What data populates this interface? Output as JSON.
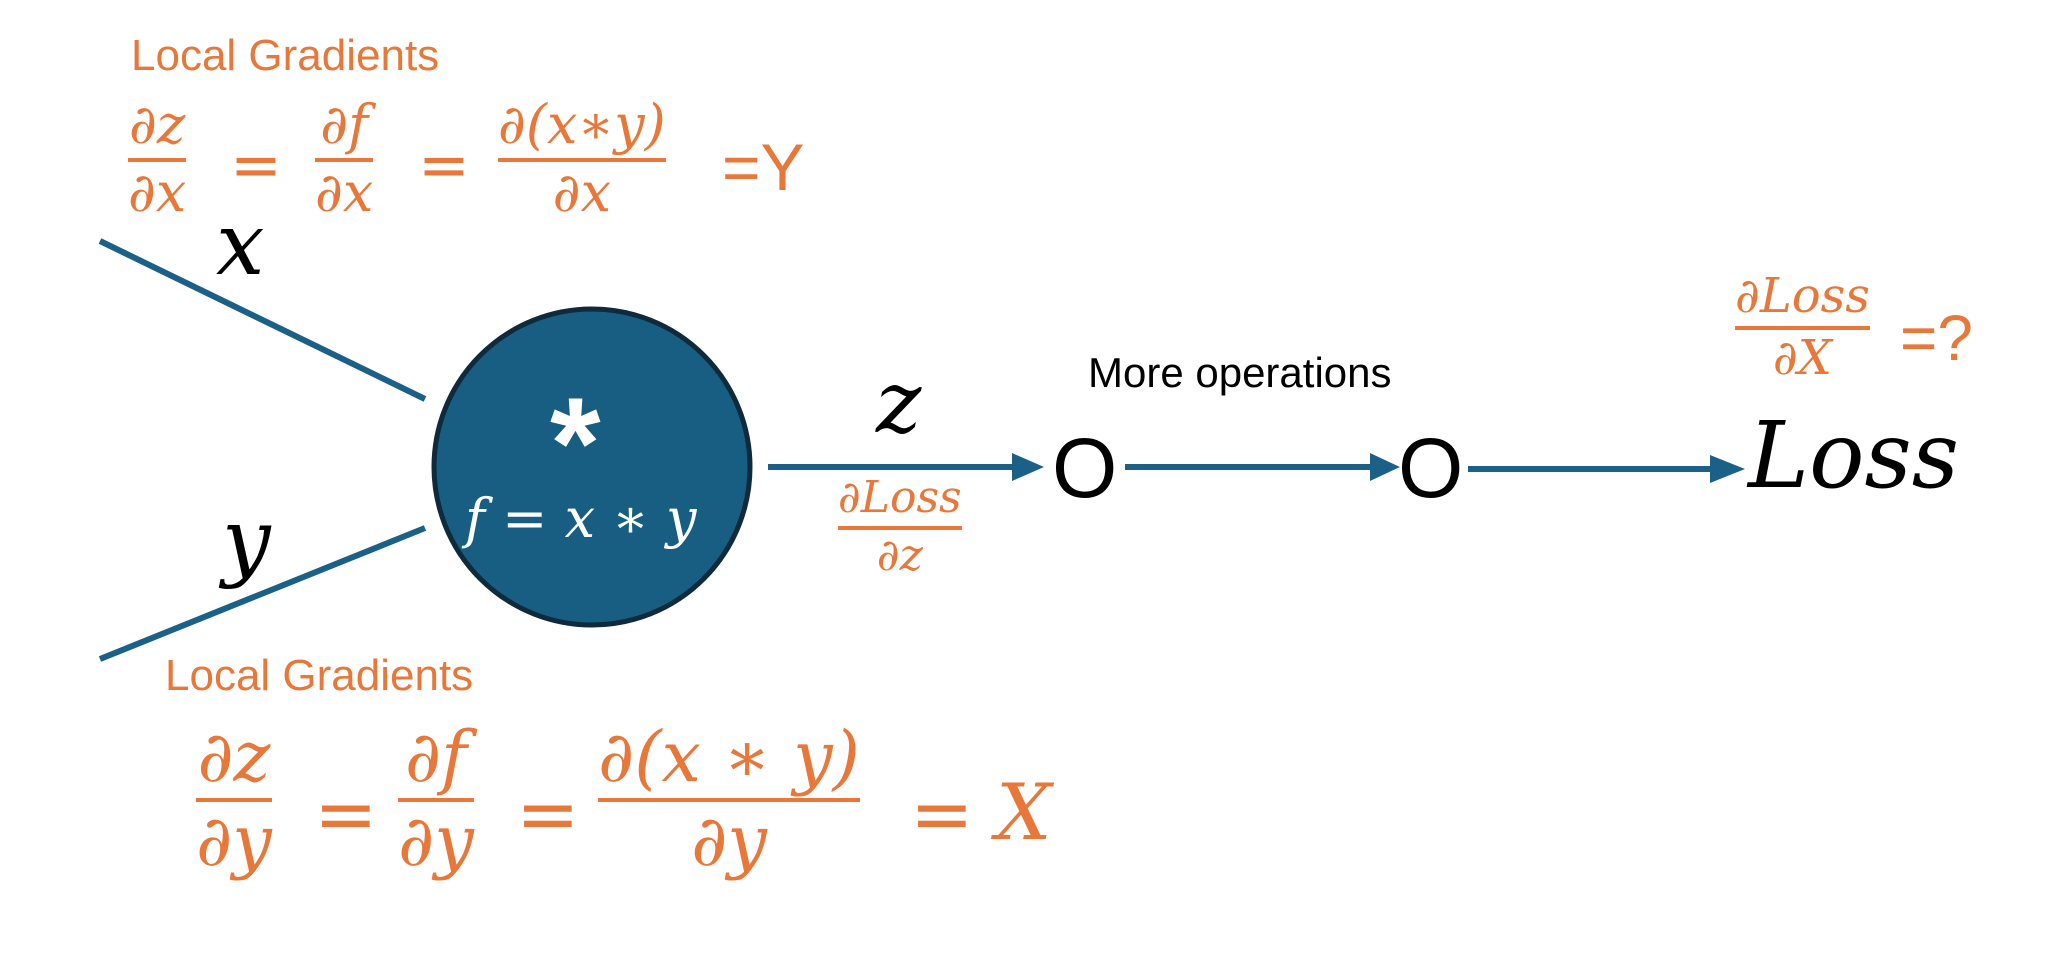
{
  "colors": {
    "accent": "#E8773A",
    "node_fill": "#175E82",
    "node_stroke": "#0E2A3B",
    "edge": "#1B6187",
    "text": "#000000",
    "node_text": "#FFFFFF"
  },
  "top_gradient": {
    "heading": "Local Gradients",
    "frac1": {
      "num": "∂z",
      "den": "∂x"
    },
    "eq1": "=",
    "frac2": {
      "num": "∂f",
      "den": "∂x"
    },
    "eq2": "=",
    "frac3": {
      "num": "∂(x∗y)",
      "den": "∂x"
    },
    "result": "=Y"
  },
  "bottom_gradient": {
    "heading": "Local Gradients",
    "frac1": {
      "num": "∂z",
      "den": "∂y"
    },
    "eq1": "=",
    "frac2": {
      "num": "∂f",
      "den": "∂y"
    },
    "eq2": "=",
    "frac3": {
      "num": "∂(x ∗ y)",
      "den": "∂y"
    },
    "eq3": "=",
    "result": "X"
  },
  "inputs": {
    "x_label": "x",
    "y_label": "y"
  },
  "node": {
    "symbol": "*",
    "formula": "f = x ∗ y"
  },
  "output": {
    "z_label": "z",
    "upstream_grad": {
      "num": "∂Loss",
      "den": "∂z"
    }
  },
  "chain": {
    "more_ops_label": "More operations",
    "op1": "O",
    "op2": "O",
    "loss_label": "Loss"
  },
  "question": {
    "frac": {
      "num": "∂Loss",
      "den": "∂X"
    },
    "suffix": "=?"
  }
}
